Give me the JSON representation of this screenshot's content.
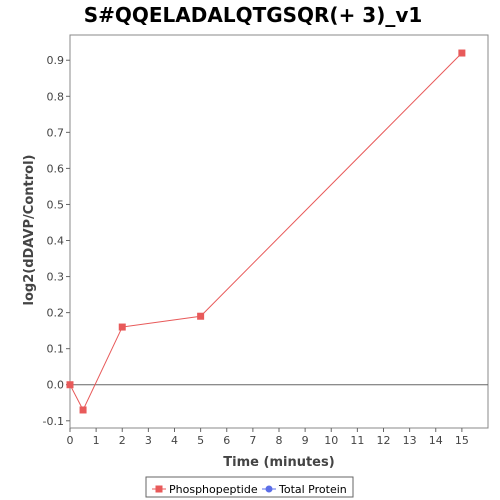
{
  "chart_data": {
    "type": "line",
    "title": "S#QQELADALQTGSQR(+ 3)_v1",
    "xlabel": "Time (minutes)",
    "ylabel": "log2(dDAVP/Control)",
    "xlim": [
      0,
      16
    ],
    "ylim": [
      -0.12,
      0.97
    ],
    "x_ticks": [
      0,
      1,
      2,
      3,
      4,
      5,
      6,
      7,
      8,
      9,
      10,
      11,
      12,
      13,
      14,
      15
    ],
    "y_ticks": [
      -0.1,
      0.0,
      0.1,
      0.2,
      0.3,
      0.4,
      0.5,
      0.6,
      0.7,
      0.8,
      0.9
    ],
    "zero_line": true,
    "grid": false,
    "legend_position": "bottom",
    "series": [
      {
        "name": "Phosphopeptide",
        "color": "#e85a5a",
        "marker": "square",
        "x": [
          0,
          0.5,
          2,
          5,
          15
        ],
        "y": [
          0.0,
          -0.07,
          0.16,
          0.19,
          0.92
        ]
      },
      {
        "name": "Total Protein",
        "color": "#5b6ee8",
        "marker": "circle",
        "x": [],
        "y": []
      }
    ]
  }
}
